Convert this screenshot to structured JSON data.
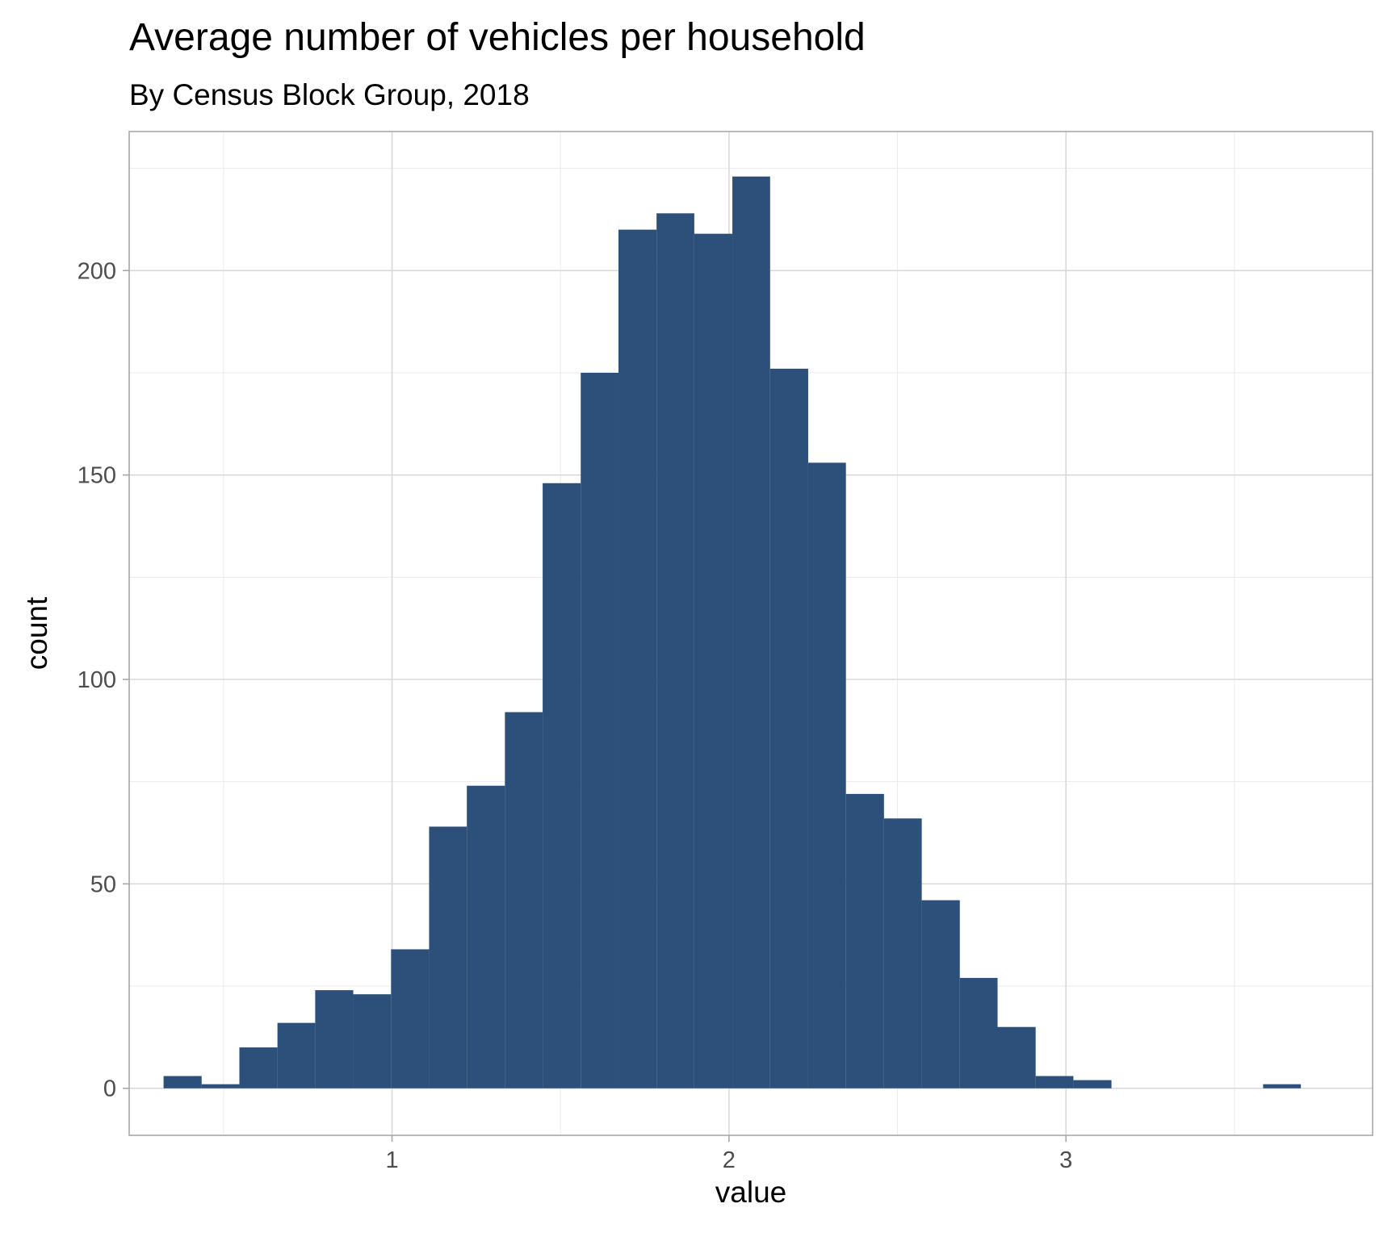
{
  "chart_data": {
    "type": "histogram",
    "title": "Average number of vehicles per household",
    "subtitle": "By Census Block Group, 2018",
    "xlabel": "value",
    "ylabel": "count",
    "xlim": [
      0.22,
      3.91
    ],
    "ylim": [
      -11.5,
      234
    ],
    "x_ticks": [
      1,
      2,
      3
    ],
    "y_ticks": [
      0,
      50,
      100,
      150,
      200
    ],
    "bin_width": 0.1125,
    "bins": [
      {
        "x0": 0.322,
        "x1": 0.435,
        "count": 3
      },
      {
        "x0": 0.435,
        "x1": 0.547,
        "count": 1
      },
      {
        "x0": 0.547,
        "x1": 0.66,
        "count": 10
      },
      {
        "x0": 0.66,
        "x1": 0.772,
        "count": 16
      },
      {
        "x0": 0.772,
        "x1": 0.885,
        "count": 24
      },
      {
        "x0": 0.885,
        "x1": 0.997,
        "count": 23
      },
      {
        "x0": 0.997,
        "x1": 1.11,
        "count": 34
      },
      {
        "x0": 1.11,
        "x1": 1.222,
        "count": 64
      },
      {
        "x0": 1.222,
        "x1": 1.335,
        "count": 74
      },
      {
        "x0": 1.335,
        "x1": 1.447,
        "count": 92
      },
      {
        "x0": 1.447,
        "x1": 1.56,
        "count": 148
      },
      {
        "x0": 1.56,
        "x1": 1.672,
        "count": 175
      },
      {
        "x0": 1.672,
        "x1": 1.785,
        "count": 210
      },
      {
        "x0": 1.785,
        "x1": 1.897,
        "count": 214
      },
      {
        "x0": 1.897,
        "x1": 2.01,
        "count": 209
      },
      {
        "x0": 2.01,
        "x1": 2.122,
        "count": 223
      },
      {
        "x0": 2.122,
        "x1": 2.235,
        "count": 176
      },
      {
        "x0": 2.235,
        "x1": 2.347,
        "count": 153
      },
      {
        "x0": 2.347,
        "x1": 2.46,
        "count": 72
      },
      {
        "x0": 2.46,
        "x1": 2.572,
        "count": 66
      },
      {
        "x0": 2.572,
        "x1": 2.685,
        "count": 46
      },
      {
        "x0": 2.685,
        "x1": 2.797,
        "count": 27
      },
      {
        "x0": 2.797,
        "x1": 2.91,
        "count": 15
      },
      {
        "x0": 2.91,
        "x1": 3.022,
        "count": 3
      },
      {
        "x0": 3.022,
        "x1": 3.135,
        "count": 2
      },
      {
        "x0": 3.135,
        "x1": 3.247,
        "count": 0
      },
      {
        "x0": 3.247,
        "x1": 3.36,
        "count": 0
      },
      {
        "x0": 3.36,
        "x1": 3.472,
        "count": 0
      },
      {
        "x0": 3.472,
        "x1": 3.585,
        "count": 0
      },
      {
        "x0": 3.585,
        "x1": 3.697,
        "count": 1
      }
    ],
    "fill_color": "#2c5079",
    "grid": true,
    "legend": "none"
  }
}
